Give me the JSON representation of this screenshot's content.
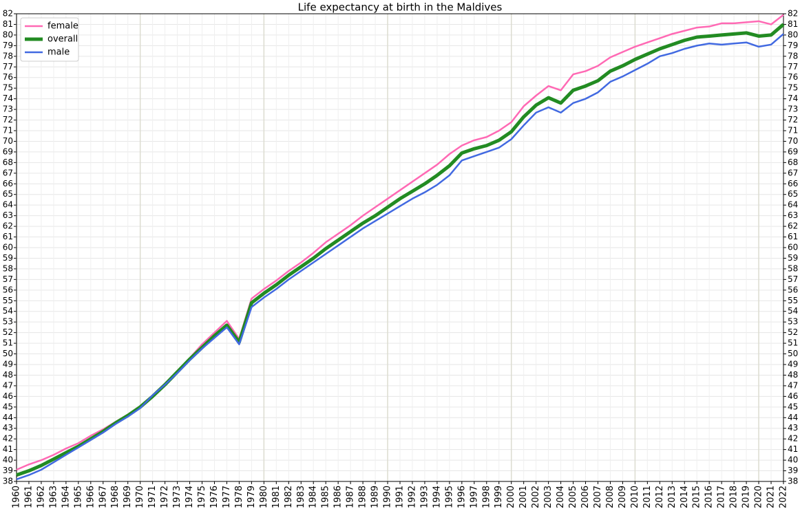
{
  "chart_data": {
    "type": "line",
    "title": "Life expectancy at birth in the Maldives",
    "x": [
      1960,
      1961,
      1962,
      1963,
      1964,
      1965,
      1966,
      1967,
      1968,
      1969,
      1970,
      1971,
      1972,
      1973,
      1974,
      1975,
      1976,
      1977,
      1978,
      1979,
      1980,
      1981,
      1982,
      1983,
      1984,
      1985,
      1986,
      1987,
      1988,
      1989,
      1990,
      1991,
      1992,
      1993,
      1994,
      1995,
      1996,
      1997,
      1998,
      1999,
      2000,
      2001,
      2002,
      2003,
      2004,
      2005,
      2006,
      2007,
      2008,
      2009,
      2010,
      2011,
      2012,
      2013,
      2014,
      2015,
      2016,
      2017,
      2018,
      2019,
      2020,
      2021,
      2022
    ],
    "series": [
      {
        "name": "female",
        "color": "#ff69b4",
        "linewidth": 2.5,
        "values": [
          39.1,
          39.6,
          40.0,
          40.5,
          41.1,
          41.6,
          42.3,
          42.9,
          43.6,
          44.3,
          45.1,
          46.1,
          47.2,
          48.4,
          49.6,
          50.9,
          52.0,
          53.1,
          51.4,
          55.2,
          56.1,
          56.9,
          57.8,
          58.6,
          59.5,
          60.5,
          61.3,
          62.1,
          63.0,
          63.8,
          64.6,
          65.4,
          66.2,
          67.0,
          67.8,
          68.8,
          69.6,
          70.1,
          70.4,
          71.0,
          71.8,
          73.3,
          74.3,
          75.2,
          74.8,
          76.3,
          76.6,
          77.1,
          77.9,
          78.4,
          78.9,
          79.3,
          79.7,
          80.1,
          80.4,
          80.7,
          80.8,
          81.1,
          81.1,
          81.2,
          81.3,
          81.0,
          81.9
        ]
      },
      {
        "name": "overall",
        "color": "#228b22",
        "linewidth": 5,
        "values": [
          38.6,
          39.0,
          39.5,
          40.1,
          40.7,
          41.3,
          42.0,
          42.7,
          43.5,
          44.2,
          45.0,
          46.0,
          47.1,
          48.3,
          49.5,
          50.6,
          51.7,
          52.7,
          51.1,
          54.8,
          55.7,
          56.5,
          57.4,
          58.2,
          59.0,
          59.9,
          60.7,
          61.5,
          62.3,
          63.0,
          63.8,
          64.6,
          65.3,
          66.0,
          66.8,
          67.7,
          68.9,
          69.3,
          69.6,
          70.1,
          70.9,
          72.3,
          73.4,
          74.1,
          73.6,
          74.8,
          75.2,
          75.7,
          76.6,
          77.1,
          77.7,
          78.2,
          78.7,
          79.1,
          79.5,
          79.8,
          79.9,
          80.0,
          80.1,
          80.2,
          79.9,
          80.0,
          81.0
        ]
      },
      {
        "name": "male",
        "color": "#4169e1",
        "linewidth": 2.5,
        "values": [
          38.2,
          38.6,
          39.1,
          39.8,
          40.5,
          41.2,
          41.9,
          42.6,
          43.4,
          44.1,
          44.9,
          46.1,
          47.1,
          48.2,
          49.4,
          50.5,
          51.5,
          52.5,
          50.9,
          54.4,
          55.3,
          56.1,
          57.0,
          57.8,
          58.6,
          59.4,
          60.2,
          61.0,
          61.8,
          62.5,
          63.2,
          63.9,
          64.6,
          65.2,
          65.9,
          66.8,
          68.2,
          68.6,
          69.0,
          69.4,
          70.2,
          71.5,
          72.7,
          73.2,
          72.7,
          73.6,
          74.0,
          74.6,
          75.6,
          76.1,
          76.7,
          77.3,
          78.0,
          78.3,
          78.7,
          79.0,
          79.2,
          79.1,
          79.2,
          79.3,
          78.9,
          79.1,
          80.1
        ]
      }
    ],
    "xlim": [
      1960,
      2022
    ],
    "xticks": [
      1960,
      1961,
      1962,
      1963,
      1964,
      1965,
      1966,
      1967,
      1968,
      1969,
      1970,
      1971,
      1972,
      1973,
      1974,
      1975,
      1976,
      1977,
      1978,
      1979,
      1980,
      1981,
      1982,
      1983,
      1984,
      1985,
      1986,
      1987,
      1988,
      1989,
      1990,
      1991,
      1992,
      1993,
      1994,
      1995,
      1996,
      1997,
      1998,
      1999,
      2000,
      2001,
      2002,
      2003,
      2004,
      2005,
      2006,
      2007,
      2008,
      2009,
      2010,
      2011,
      2012,
      2013,
      2014,
      2015,
      2016,
      2017,
      2018,
      2019,
      2020,
      2021,
      2022
    ],
    "ylim": [
      38,
      82
    ],
    "yticks": [
      38,
      39,
      40,
      41,
      42,
      43,
      44,
      45,
      46,
      47,
      48,
      49,
      50,
      51,
      52,
      53,
      54,
      55,
      56,
      57,
      58,
      59,
      60,
      61,
      62,
      63,
      64,
      65,
      66,
      67,
      68,
      69,
      70,
      71,
      72,
      73,
      74,
      75,
      76,
      77,
      78,
      79,
      80,
      81,
      82
    ],
    "grid": true,
    "legend": "upper left"
  }
}
